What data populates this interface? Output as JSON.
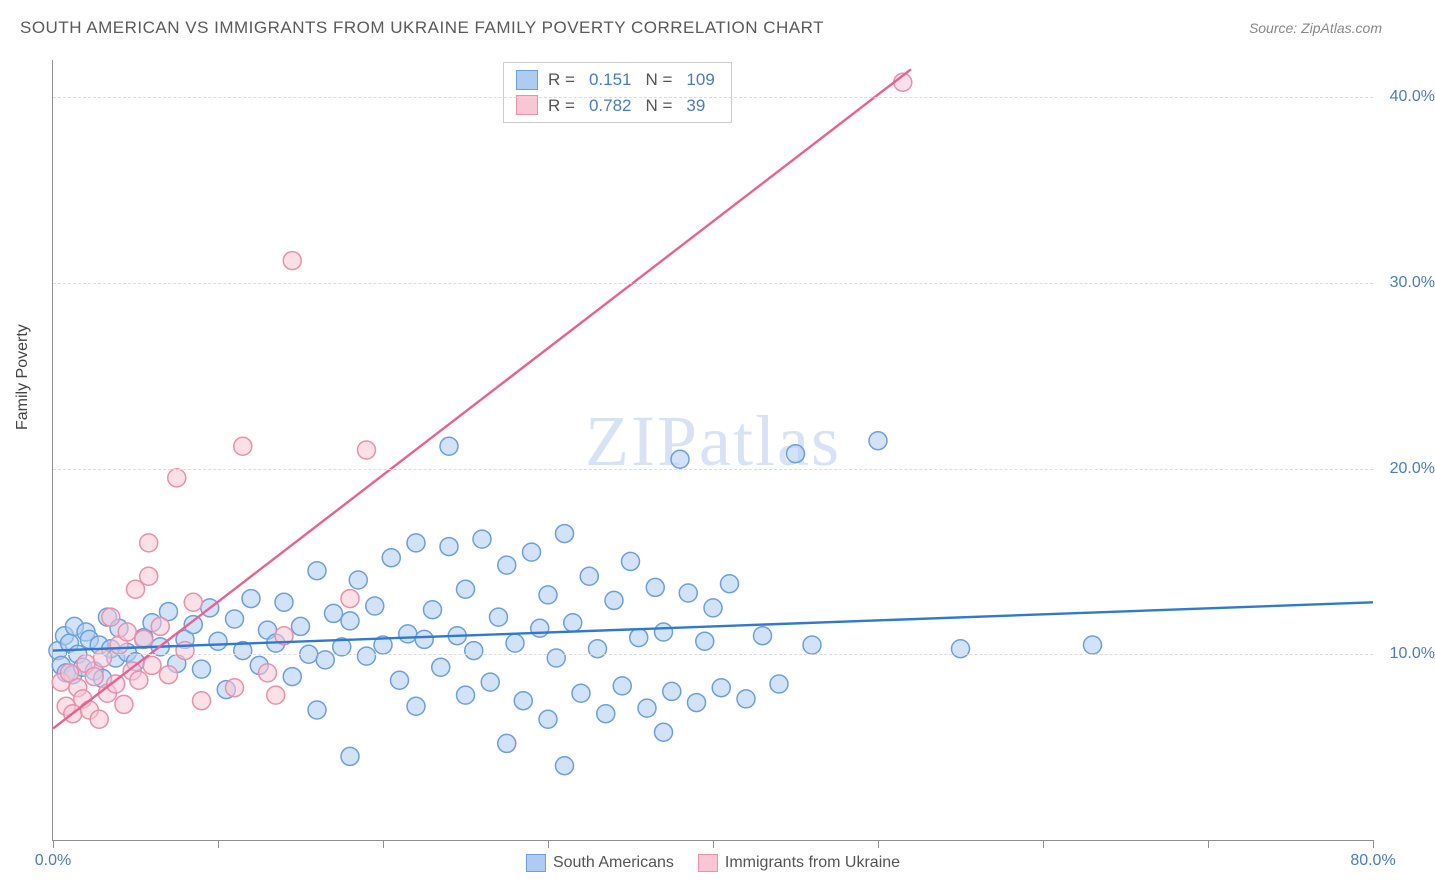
{
  "title": "SOUTH AMERICAN VS IMMIGRANTS FROM UKRAINE FAMILY POVERTY CORRELATION CHART",
  "source": "Source: ZipAtlas.com",
  "ylabel": "Family Poverty",
  "watermark_a": "ZIP",
  "watermark_b": "atlas",
  "chart": {
    "type": "scatter",
    "xlim": [
      0,
      80
    ],
    "ylim": [
      0,
      42
    ],
    "xticks": [
      0,
      10,
      20,
      30,
      40,
      50,
      60,
      70,
      80
    ],
    "xtick_labels_shown": {
      "0": "0.0%",
      "80": "80.0%"
    },
    "yticks": [
      10,
      20,
      30,
      40
    ],
    "ytick_labels": {
      "10": "10.0%",
      "20": "20.0%",
      "30": "30.0%",
      "40": "40.0%"
    },
    "grid_color": "#dcdcdc",
    "background_color": "#ffffff",
    "axis_color": "#909090",
    "tick_label_color": "#4a7ac8",
    "marker_radius": 9,
    "marker_stroke_width": 1.5,
    "line_width": 2.4,
    "series": [
      {
        "name": "South Americans",
        "color_fill": "#aeccf1",
        "color_stroke": "#6b9fe0",
        "line_color": "#2f79d2",
        "fill_opacity": 0.55,
        "R": "0.151",
        "N": "109",
        "regression": {
          "x1": 0,
          "y1": 10.2,
          "x2": 80,
          "y2": 12.8
        },
        "points": [
          [
            0.3,
            10.2
          ],
          [
            0.5,
            9.4
          ],
          [
            0.7,
            11.0
          ],
          [
            0.8,
            9.0
          ],
          [
            1.0,
            10.6
          ],
          [
            1.2,
            8.9
          ],
          [
            1.3,
            11.5
          ],
          [
            1.5,
            10.0
          ],
          [
            1.8,
            9.3
          ],
          [
            2.0,
            11.2
          ],
          [
            2.2,
            10.8
          ],
          [
            2.5,
            9.1
          ],
          [
            2.8,
            10.5
          ],
          [
            3.0,
            8.7
          ],
          [
            3.3,
            12.0
          ],
          [
            3.5,
            10.3
          ],
          [
            3.8,
            9.8
          ],
          [
            4.0,
            11.4
          ],
          [
            4.5,
            10.1
          ],
          [
            5.0,
            9.6
          ],
          [
            5.5,
            10.9
          ],
          [
            6.0,
            11.7
          ],
          [
            6.5,
            10.4
          ],
          [
            7.0,
            12.3
          ],
          [
            7.5,
            9.5
          ],
          [
            8.0,
            10.8
          ],
          [
            8.5,
            11.6
          ],
          [
            9.0,
            9.2
          ],
          [
            9.5,
            12.5
          ],
          [
            10.0,
            10.7
          ],
          [
            10.5,
            8.1
          ],
          [
            11.0,
            11.9
          ],
          [
            11.5,
            10.2
          ],
          [
            12.0,
            13.0
          ],
          [
            12.5,
            9.4
          ],
          [
            13.0,
            11.3
          ],
          [
            13.5,
            10.6
          ],
          [
            14.0,
            12.8
          ],
          [
            14.5,
            8.8
          ],
          [
            15.0,
            11.5
          ],
          [
            15.5,
            10.0
          ],
          [
            16.0,
            14.5
          ],
          [
            16.0,
            7.0
          ],
          [
            16.5,
            9.7
          ],
          [
            17.0,
            12.2
          ],
          [
            17.5,
            10.4
          ],
          [
            18.0,
            4.5
          ],
          [
            18.0,
            11.8
          ],
          [
            18.5,
            14.0
          ],
          [
            19.0,
            9.9
          ],
          [
            19.5,
            12.6
          ],
          [
            20.0,
            10.5
          ],
          [
            20.5,
            15.2
          ],
          [
            21.0,
            8.6
          ],
          [
            21.5,
            11.1
          ],
          [
            22.0,
            7.2
          ],
          [
            22.0,
            16.0
          ],
          [
            22.5,
            10.8
          ],
          [
            23.0,
            12.4
          ],
          [
            23.5,
            9.3
          ],
          [
            24.0,
            15.8
          ],
          [
            24.0,
            21.2
          ],
          [
            24.5,
            11.0
          ],
          [
            25.0,
            7.8
          ],
          [
            25.0,
            13.5
          ],
          [
            25.5,
            10.2
          ],
          [
            26.0,
            16.2
          ],
          [
            26.5,
            8.5
          ],
          [
            27.0,
            12.0
          ],
          [
            27.5,
            5.2
          ],
          [
            27.5,
            14.8
          ],
          [
            28.0,
            10.6
          ],
          [
            28.5,
            7.5
          ],
          [
            29.0,
            15.5
          ],
          [
            29.5,
            11.4
          ],
          [
            30.0,
            6.5
          ],
          [
            30.0,
            13.2
          ],
          [
            30.5,
            9.8
          ],
          [
            31.0,
            4.0
          ],
          [
            31.0,
            16.5
          ],
          [
            31.5,
            11.7
          ],
          [
            32.0,
            7.9
          ],
          [
            32.5,
            14.2
          ],
          [
            33.0,
            10.3
          ],
          [
            33.5,
            6.8
          ],
          [
            34.0,
            12.9
          ],
          [
            34.5,
            8.3
          ],
          [
            35.0,
            15.0
          ],
          [
            35.5,
            10.9
          ],
          [
            36.0,
            7.1
          ],
          [
            36.5,
            13.6
          ],
          [
            37.0,
            5.8
          ],
          [
            37.0,
            11.2
          ],
          [
            37.5,
            8.0
          ],
          [
            38.0,
            20.5
          ],
          [
            38.5,
            13.3
          ],
          [
            39.0,
            7.4
          ],
          [
            39.5,
            10.7
          ],
          [
            40.0,
            12.5
          ],
          [
            40.5,
            8.2
          ],
          [
            41.0,
            13.8
          ],
          [
            42.0,
            7.6
          ],
          [
            43.0,
            11.0
          ],
          [
            44.0,
            8.4
          ],
          [
            45.0,
            20.8
          ],
          [
            46.0,
            10.5
          ],
          [
            50.0,
            21.5
          ],
          [
            55.0,
            10.3
          ],
          [
            63.0,
            10.5
          ]
        ]
      },
      {
        "name": "Immigrants from Ukraine",
        "color_fill": "#f8c6d5",
        "color_stroke": "#ec8fa9",
        "line_color": "#ec6091",
        "fill_opacity": 0.55,
        "R": "0.782",
        "N": "39",
        "regression": {
          "x1": 0,
          "y1": 6.0,
          "x2": 52,
          "y2": 41.5
        },
        "points": [
          [
            0.5,
            8.5
          ],
          [
            0.8,
            7.2
          ],
          [
            1.0,
            9.0
          ],
          [
            1.2,
            6.8
          ],
          [
            1.5,
            8.2
          ],
          [
            1.8,
            7.6
          ],
          [
            2.0,
            9.5
          ],
          [
            2.2,
            7.0
          ],
          [
            2.5,
            8.8
          ],
          [
            2.8,
            6.5
          ],
          [
            3.0,
            9.8
          ],
          [
            3.3,
            7.9
          ],
          [
            3.5,
            12.0
          ],
          [
            3.8,
            8.4
          ],
          [
            4.0,
            10.5
          ],
          [
            4.3,
            7.3
          ],
          [
            4.5,
            11.2
          ],
          [
            4.8,
            9.1
          ],
          [
            5.0,
            13.5
          ],
          [
            5.2,
            8.6
          ],
          [
            5.5,
            10.8
          ],
          [
            5.8,
            14.2
          ],
          [
            5.8,
            16.0
          ],
          [
            6.0,
            9.4
          ],
          [
            6.5,
            11.5
          ],
          [
            7.0,
            8.9
          ],
          [
            7.5,
            19.5
          ],
          [
            8.0,
            10.2
          ],
          [
            8.5,
            12.8
          ],
          [
            9.0,
            7.5
          ],
          [
            11.0,
            8.2
          ],
          [
            11.5,
            21.2
          ],
          [
            13.0,
            9.0
          ],
          [
            13.5,
            7.8
          ],
          [
            14.0,
            11.0
          ],
          [
            14.5,
            31.2
          ],
          [
            18.0,
            13.0
          ],
          [
            19.0,
            21.0
          ],
          [
            51.5,
            40.8
          ]
        ]
      }
    ]
  },
  "stats_legend": {
    "r_label": "R =",
    "n_label": "N ="
  },
  "bottom_legend": {
    "series1": "South Americans",
    "series2": "Immigrants from Ukraine"
  }
}
